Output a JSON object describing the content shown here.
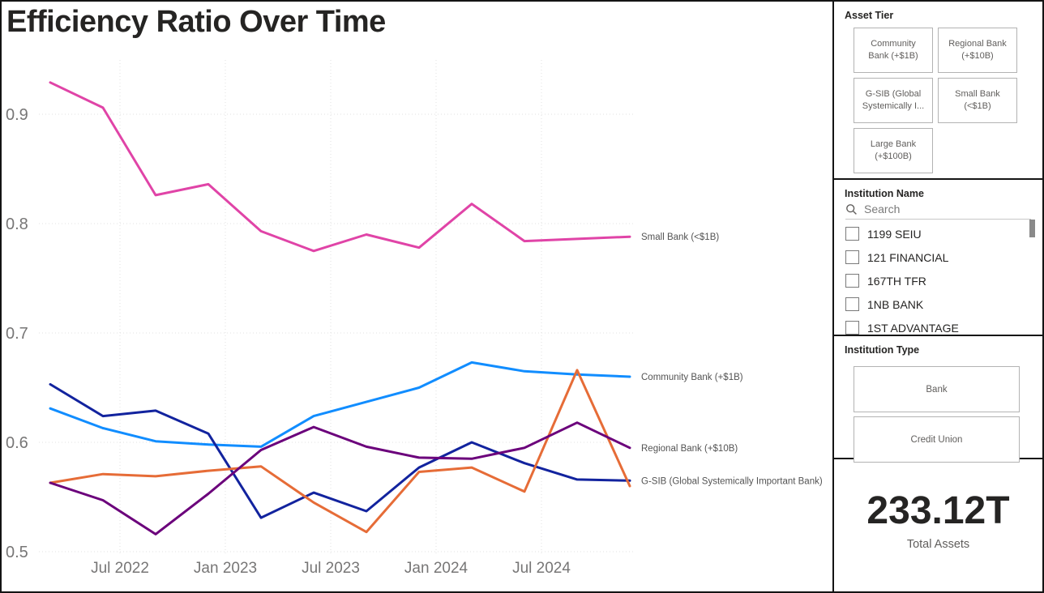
{
  "chart": {
    "title": "Efficiency Ratio Over Time"
  },
  "chart_data": {
    "type": "line",
    "title": "Efficiency Ratio Over Time",
    "xlabel": "",
    "ylabel": "",
    "x": [
      "Mar 2022",
      "Jun 2022",
      "Sep 2022",
      "Dec 2022",
      "Mar 2023",
      "Jun 2023",
      "Sep 2023",
      "Dec 2023",
      "Mar 2024",
      "Jun 2024",
      "Sep 2024",
      "Dec 2024"
    ],
    "x_axis_ticks": [
      "Jul 2022",
      "Jan 2023",
      "Jul 2023",
      "Jan 2024",
      "Jul 2024"
    ],
    "y_ticks": [
      0.9,
      0.8,
      0.7,
      0.6,
      0.5
    ],
    "ylim": [
      0.5,
      0.945
    ],
    "grid": true,
    "legend_position": "line-end-labels",
    "series": [
      {
        "name": "Community Bank (+$1B)",
        "color": "#118DFF",
        "label_visible": true,
        "values": [
          0.631,
          0.613,
          0.601,
          0.598,
          0.596,
          0.624,
          0.637,
          0.65,
          0.673,
          0.665,
          0.662,
          0.66
        ]
      },
      {
        "name": "G-SIB (Global Systemically Important Bank)",
        "color": "#12239E",
        "label_visible": true,
        "values": [
          0.653,
          0.624,
          0.629,
          0.608,
          0.531,
          0.554,
          0.537,
          0.577,
          0.6,
          0.581,
          0.566,
          0.565
        ]
      },
      {
        "name": "Large Bank (+$100B)",
        "color": "#E66C37",
        "label_visible": false,
        "values": [
          0.563,
          0.571,
          0.569,
          0.574,
          0.578,
          0.545,
          0.518,
          0.573,
          0.577,
          0.555,
          0.666,
          0.56
        ]
      },
      {
        "name": "Regional Bank (+$10B)",
        "color": "#6B007B",
        "label_visible": true,
        "values": [
          0.563,
          0.547,
          0.516,
          0.553,
          0.593,
          0.614,
          0.596,
          0.586,
          0.585,
          0.595,
          0.618,
          0.595
        ]
      },
      {
        "name": "Small Bank (<$1B)",
        "color": "#E044A7",
        "label_visible": true,
        "values": [
          0.929,
          0.906,
          0.826,
          0.836,
          0.793,
          0.775,
          0.79,
          0.778,
          0.818,
          0.784,
          0.786,
          0.788
        ]
      }
    ]
  },
  "sidebar": {
    "asset_tier": {
      "title": "Asset Tier",
      "buttons": [
        "Community Bank (+$1B)",
        "Regional Bank (+$10B)",
        "G-SIB (Global Systemically I...",
        "Small Bank (<$1B)",
        "Large Bank (+$100B)"
      ]
    },
    "institution_name": {
      "title": "Institution Name",
      "search_icon": "magnifier",
      "search_placeholder": "Search",
      "search_value": "",
      "items": [
        {
          "label": "1199 SEIU",
          "checked": false
        },
        {
          "label": "121 FINANCIAL",
          "checked": false
        },
        {
          "label": "167TH TFR",
          "checked": false
        },
        {
          "label": "1NB BANK",
          "checked": false
        },
        {
          "label": "1ST ADVANTAGE",
          "checked": false
        }
      ]
    },
    "institution_type": {
      "title": "Institution Type",
      "buttons": [
        "Bank",
        "Credit Union"
      ]
    },
    "total_assets": {
      "value": "233.12T",
      "label": "Total Assets"
    }
  }
}
